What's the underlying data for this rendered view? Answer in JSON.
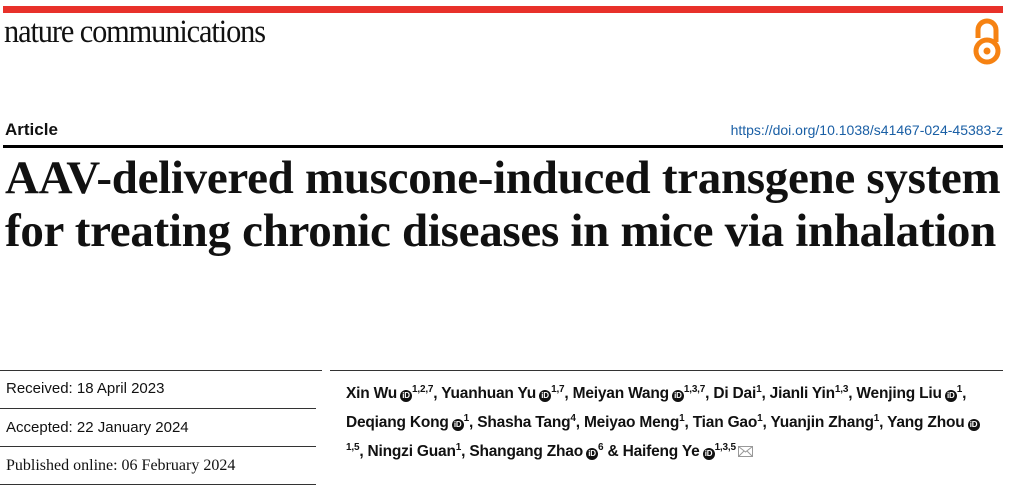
{
  "journal": {
    "name": "nature communications",
    "brand_color": "#e8312a",
    "open_access_icon": "open-access-icon",
    "oa_color": "#f68212"
  },
  "article_type": "Article",
  "doi": "https://doi.org/10.1038/s41467-024-45383-z",
  "title": "AAV-delivered muscone-induced transgene system for treating chronic diseases in mice via inhalation",
  "dates": {
    "received": "Received: 18 April 2023",
    "accepted": "Accepted: 22 January 2024",
    "published": "Published online: 06 February 2024"
  },
  "authors": [
    {
      "name": "Xin Wu",
      "orcid": true,
      "sup": "1,2,7",
      "sep": ", "
    },
    {
      "name": "Yuanhuan Yu",
      "orcid": true,
      "sup": "1,7",
      "sep": ", "
    },
    {
      "name": "Meiyan Wang",
      "orcid": true,
      "sup": "1,3,7",
      "sep": ", "
    },
    {
      "name": "Di Dai",
      "orcid": false,
      "sup": "1",
      "sep": ", "
    },
    {
      "name": "Jianli Yin",
      "orcid": false,
      "sup": "1,3",
      "sep": ", "
    },
    {
      "name": "Wenjing Liu",
      "orcid": true,
      "sup": "1",
      "sep": ", "
    },
    {
      "name": "Deqiang Kong",
      "orcid": true,
      "sup": "1",
      "sep": ", "
    },
    {
      "name": "Shasha Tang",
      "orcid": false,
      "sup": "4",
      "sep": ", "
    },
    {
      "name": "Meiyao Meng",
      "orcid": false,
      "sup": "1",
      "sep": ", "
    },
    {
      "name": "Tian Gao",
      "orcid": false,
      "sup": "1",
      "sep": ", "
    },
    {
      "name": "Yuanjin Zhang",
      "orcid": false,
      "sup": "1",
      "sep": ", "
    },
    {
      "name": "Yang Zhou",
      "orcid": true,
      "sup": "1,5",
      "sep": ", "
    },
    {
      "name": "Ningzi Guan",
      "orcid": false,
      "sup": "1",
      "sep": ", "
    },
    {
      "name": "Shangang Zhao",
      "orcid": true,
      "sup": "6",
      "sep": " & "
    },
    {
      "name": "Haifeng Ye",
      "orcid": true,
      "sup": "1,3,5",
      "sep": "",
      "corresponding": true
    }
  ]
}
